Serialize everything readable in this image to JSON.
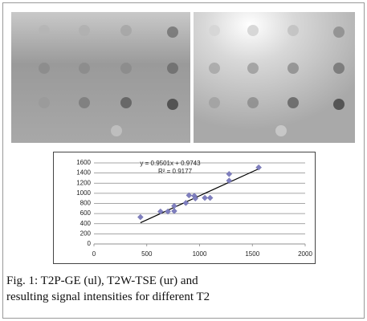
{
  "chart_data": {
    "type": "scatter",
    "x": [
      440,
      630,
      700,
      760,
      760,
      870,
      900,
      950,
      960,
      1050,
      1100,
      1280,
      1280,
      1560
    ],
    "values": [
      530,
      640,
      640,
      650,
      750,
      810,
      960,
      950,
      900,
      910,
      910,
      1250,
      1380,
      1510
    ],
    "color": "#7f7fbf",
    "trendline": {
      "label": "y = 0.9501x + 0.9743",
      "slope": 0.9501,
      "intercept": 0.9743,
      "color": "#000000"
    },
    "r_squared_label": "R² = 0.9177",
    "xlim": [
      0,
      2000
    ],
    "xticks": [
      0,
      500,
      1000,
      1500,
      2000
    ],
    "ylim": [
      0,
      1600
    ],
    "yticks": [
      0,
      200,
      400,
      600,
      800,
      1000,
      1200,
      1400,
      1600
    ],
    "grid": true
  },
  "caption": [
    "Fig. 1: T2P-GE (ul), T2W-TSE (ur) and",
    "resulting signal intensities for different T2"
  ]
}
